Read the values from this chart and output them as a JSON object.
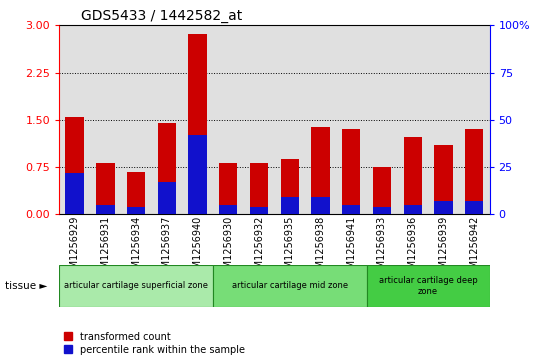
{
  "title": "GDS5433 / 1442582_at",
  "samples": [
    "GSM1256929",
    "GSM1256931",
    "GSM1256934",
    "GSM1256937",
    "GSM1256940",
    "GSM1256930",
    "GSM1256932",
    "GSM1256935",
    "GSM1256938",
    "GSM1256941",
    "GSM1256933",
    "GSM1256936",
    "GSM1256939",
    "GSM1256942"
  ],
  "transformed_count": [
    1.55,
    0.82,
    0.67,
    1.45,
    2.87,
    0.82,
    0.82,
    0.87,
    1.38,
    1.35,
    0.75,
    1.22,
    1.1,
    1.35
  ],
  "percentile_rank_pct": [
    22,
    5,
    4,
    17,
    42,
    5,
    4,
    9,
    9,
    5,
    4,
    5,
    7,
    7
  ],
  "ylim_left": [
    0,
    3
  ],
  "ylim_right": [
    0,
    100
  ],
  "yticks_left": [
    0,
    0.75,
    1.5,
    2.25,
    3
  ],
  "yticks_right": [
    0,
    25,
    50,
    75,
    100
  ],
  "bar_color_red": "#cc0000",
  "bar_color_blue": "#1111cc",
  "grid_color": "black",
  "bg_color": "#e0e0e0",
  "tissue_labels": [
    "articular cartilage superficial zone",
    "articular cartilage mid zone",
    "articular cartilage deep\nzone"
  ],
  "tissue_colors": [
    "#aaeaaa",
    "#77dd77",
    "#44cc44"
  ],
  "tissue_sample_counts": [
    5,
    5,
    4
  ],
  "legend_red": "transformed count",
  "legend_blue": "percentile rank within the sample",
  "tissue_label_text": "tissue ►"
}
